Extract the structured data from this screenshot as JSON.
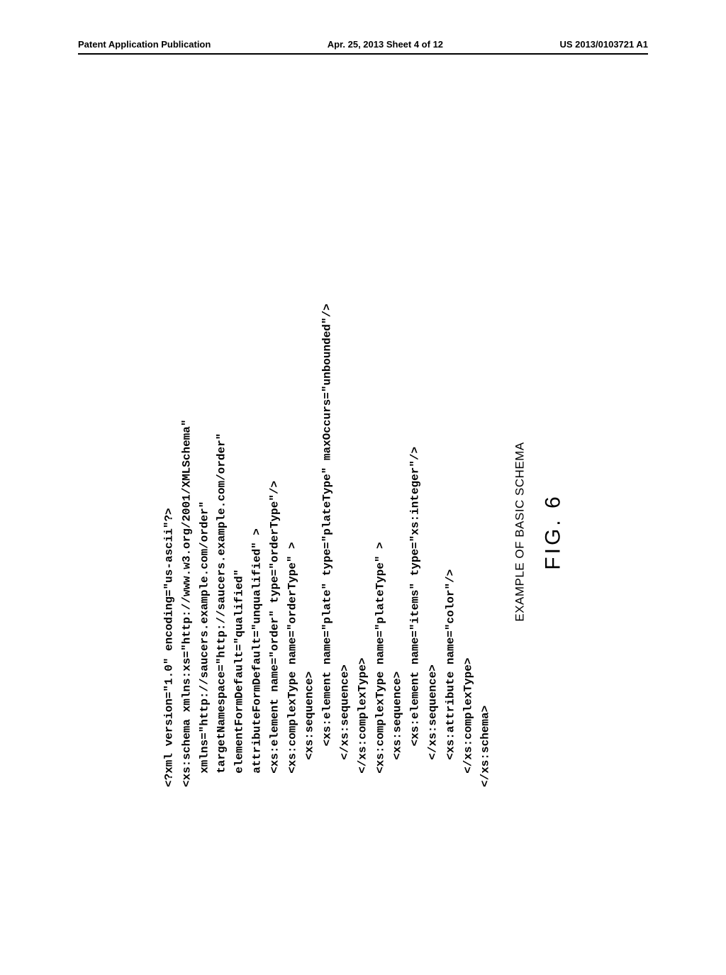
{
  "header": {
    "left": "Patent Application Publication",
    "center": "Apr. 25, 2013  Sheet 4 of 12",
    "right": "US 2013/0103721 A1"
  },
  "code": {
    "line1": "<?xml version=\"1.0\" encoding=\"us-ascii\"?>",
    "line2": "<xs:schema xmlns:xs=\"http://www.w3.org/2001/XMLSchema\"",
    "line3": "  xmlns=\"http://saucers.example.com/order\"",
    "line4": "  targetNamespace=\"http://saucers.example.com/order\"",
    "line5": "  elementFormDefault=\"qualified\"",
    "line6": "  attributeFormDefault=\"unqualified\" >",
    "line7": "  <xs:element name=\"order\" type=\"orderType\"/>",
    "line8": "  <xs:complexType name=\"orderType\" >",
    "line9": "    <xs:sequence>",
    "line10": "      <xs:element name=\"plate\" type=\"plateType\" maxOccurs=\"unbounded\"/>",
    "line11": "    </xs:sequence>",
    "line12": "  </xs:complexType>",
    "line13": "  <xs:complexType name=\"plateType\" >",
    "line14": "    <xs:sequence>",
    "line15": "      <xs:element name=\"items\" type=\"xs:integer\"/>",
    "line16": "    </xs:sequence>",
    "line17": "    <xs:attribute name=\"color\"/>",
    "line18": "  </xs:complexType>",
    "line19": "</xs:schema>"
  },
  "caption": {
    "label": "EXAMPLE OF BASIC SCHEMA",
    "figure": "FIG. 6"
  }
}
